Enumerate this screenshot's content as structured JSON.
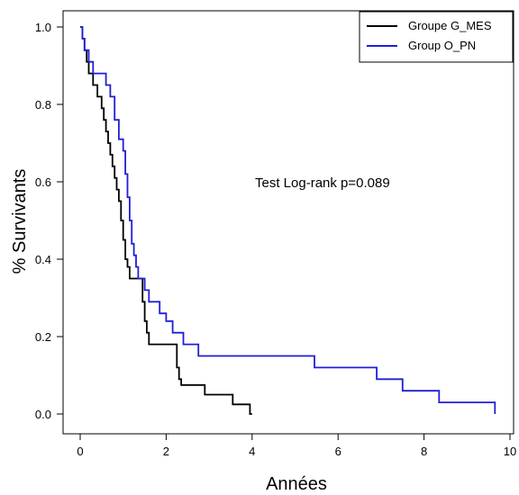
{
  "chart_data": {
    "type": "line",
    "step": true,
    "xlabel": "Années",
    "ylabel": "% Survivants",
    "xlim": [
      0,
      10
    ],
    "ylim": [
      0,
      1
    ],
    "x_ticks": [
      0,
      2,
      4,
      6,
      8,
      10
    ],
    "y_ticks": [
      "0.0",
      "0.2",
      "0.4",
      "0.6",
      "0.8",
      "1.0"
    ],
    "annotation": "Test Log-rank p=0.089",
    "legend_position": "top-right",
    "series": [
      {
        "name": "Groupe G_MES",
        "color": "#000000",
        "x": [
          0,
          0.05,
          0.1,
          0.15,
          0.2,
          0.25,
          0.3,
          0.4,
          0.5,
          0.55,
          0.6,
          0.65,
          0.7,
          0.75,
          0.8,
          0.85,
          0.9,
          0.95,
          1.0,
          1.05,
          1.1,
          1.15,
          1.2,
          1.25,
          1.3,
          1.45,
          1.5,
          1.55,
          1.6,
          1.7,
          2.25,
          2.3,
          2.35,
          2.9,
          3.55,
          3.95,
          4.0
        ],
        "y": [
          1.0,
          0.97,
          0.94,
          0.91,
          0.88,
          0.88,
          0.85,
          0.82,
          0.79,
          0.76,
          0.73,
          0.7,
          0.67,
          0.64,
          0.61,
          0.58,
          0.55,
          0.5,
          0.45,
          0.4,
          0.38,
          0.35,
          0.35,
          0.35,
          0.35,
          0.29,
          0.24,
          0.21,
          0.18,
          0.18,
          0.12,
          0.09,
          0.075,
          0.05,
          0.025,
          0.0,
          0.0
        ]
      },
      {
        "name": "Group O_PN",
        "color": "#1f1fd6",
        "x": [
          0,
          0.05,
          0.1,
          0.2,
          0.3,
          0.4,
          0.6,
          0.7,
          0.8,
          0.9,
          1.0,
          1.05,
          1.1,
          1.15,
          1.2,
          1.25,
          1.3,
          1.35,
          1.5,
          1.6,
          1.7,
          1.85,
          2.0,
          2.15,
          2.4,
          2.75,
          3.15,
          5.45,
          6.9,
          7.5,
          8.35,
          9.65
        ],
        "y": [
          1.0,
          0.97,
          0.94,
          0.91,
          0.88,
          0.88,
          0.85,
          0.82,
          0.76,
          0.71,
          0.68,
          0.62,
          0.56,
          0.5,
          0.44,
          0.41,
          0.38,
          0.35,
          0.32,
          0.29,
          0.29,
          0.26,
          0.24,
          0.21,
          0.18,
          0.15,
          0.15,
          0.12,
          0.09,
          0.06,
          0.03,
          0.0
        ]
      }
    ]
  }
}
